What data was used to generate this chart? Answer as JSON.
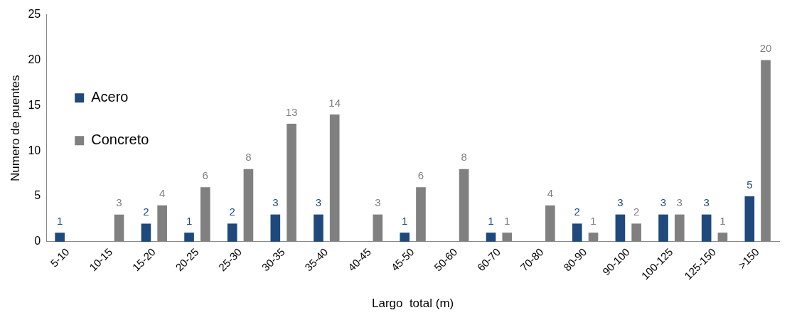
{
  "chart_data": {
    "type": "bar",
    "xlabel": "Largo  total (m)",
    "ylabel": "Numero de puentes",
    "categories": [
      "5-10",
      "10-15",
      "15-20",
      "20-25",
      "25-30",
      "30-35",
      "35-40",
      "40-45",
      "45-50",
      "50-60",
      "60-70",
      "70-80",
      "80-90",
      "90-100",
      "100-125",
      "125-150",
      ">150"
    ],
    "series": [
      {
        "name": "Acero",
        "color": "#1f497d",
        "values": [
          1,
          null,
          2,
          1,
          2,
          3,
          3,
          null,
          1,
          null,
          1,
          null,
          2,
          3,
          3,
          3,
          5
        ]
      },
      {
        "name": "Concreto",
        "color": "#808080",
        "values": [
          null,
          3,
          4,
          6,
          8,
          13,
          14,
          3,
          6,
          8,
          1,
          4,
          1,
          2,
          3,
          1,
          20
        ]
      }
    ],
    "ylim": [
      0,
      25
    ],
    "yticks": [
      0,
      5,
      10,
      15,
      20,
      25
    ],
    "grid": false,
    "legend": "top",
    "data_labels": true
  }
}
